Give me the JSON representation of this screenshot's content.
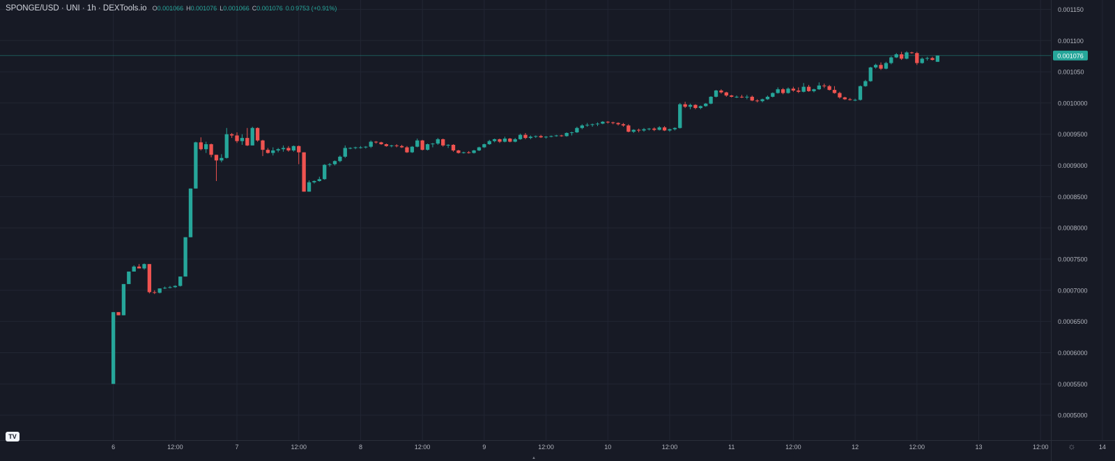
{
  "header": {
    "symbol": "SPONGE/USD · UNI · 1h · DEXTools.io",
    "ohlc": [
      {
        "key": "O",
        "value": "0.001066"
      },
      {
        "key": "H",
        "value": "0.001076"
      },
      {
        "key": "L",
        "value": "0.001066"
      },
      {
        "key": "C",
        "value": "0.001076"
      }
    ],
    "change": "0.0 9753 (+0.91%)"
  },
  "branding": {
    "tv_logo": "TV"
  },
  "colors": {
    "background": "#171a25",
    "grid": "#222633",
    "up": "#26a69a",
    "down": "#ef5350",
    "text": "#b2b5be",
    "price_label_bg": "#26a69a"
  },
  "chart_data": {
    "type": "candlestick",
    "title": "SPONGE/USD · UNI · 1h · DEXTools.io",
    "x_ticks": [
      "6",
      "12:00",
      "7",
      "12:00",
      "8",
      "12:00",
      "9",
      "12:00",
      "10",
      "12:00",
      "11",
      "12:00",
      "12",
      "12:00",
      "13",
      "12:00",
      "14",
      "12:00"
    ],
    "y_ticks": [
      "0.001150",
      "0.001100",
      "0.001050",
      "0.0010000",
      "0.0009500",
      "0.0009000",
      "0.0008500",
      "0.0008000",
      "0.0007500",
      "0.0007000",
      "0.0006500",
      "0.0006000",
      "0.0005500",
      "0.0005000"
    ],
    "y_tick_values": [
      0.00115,
      0.0011,
      0.00105,
      0.001,
      0.00095,
      0.0009,
      0.00085,
      0.0008,
      0.00075,
      0.0007,
      0.00065,
      0.0006,
      0.00055,
      0.0005
    ],
    "ylim": [
      0.00046,
      0.001165
    ],
    "x_range_hours": [
      -22,
      182
    ],
    "last_price": 0.001076,
    "last_price_label": "0.001076",
    "grid": true,
    "candles_start_hour": 0,
    "candles": [
      [
        0.00055,
        0.000665,
        0.00055,
        0.000665
      ],
      [
        0.000665,
        0.000665,
        0.00066,
        0.00066
      ],
      [
        0.00066,
        0.00071,
        0.00066,
        0.00071
      ],
      [
        0.00071,
        0.00073,
        0.00071,
        0.00073
      ],
      [
        0.00073,
        0.00074,
        0.00073,
        0.000738
      ],
      [
        0.000738,
        0.000742,
        0.000735,
        0.000735
      ],
      [
        0.000735,
        0.000743,
        0.000733,
        0.000742
      ],
      [
        0.000742,
        0.000742,
        0.000695,
        0.000697
      ],
      [
        0.000697,
        0.0007,
        0.000694,
        0.000696
      ],
      [
        0.000696,
        0.000703,
        0.000695,
        0.000703
      ],
      [
        0.000703,
        0.000706,
        0.000702,
        0.000704
      ],
      [
        0.000704,
        0.000707,
        0.000703,
        0.000705
      ],
      [
        0.000705,
        0.000708,
        0.000704,
        0.000707
      ],
      [
        0.000707,
        0.000722,
        0.000706,
        0.000722
      ],
      [
        0.000722,
        0.000785,
        0.000722,
        0.000785
      ],
      [
        0.000785,
        0.000863,
        0.000785,
        0.000863
      ],
      [
        0.000863,
        0.000938,
        0.000863,
        0.000937
      ],
      [
        0.000937,
        0.000945,
        0.000924,
        0.000926
      ],
      [
        0.000926,
        0.000938,
        0.00092,
        0.000934
      ],
      [
        0.000934,
        0.000935,
        0.000913,
        0.000917
      ],
      [
        0.000917,
        0.000917,
        0.000875,
        0.000908
      ],
      [
        0.000908,
        0.000918,
        0.000905,
        0.000912
      ],
      [
        0.000912,
        0.00096,
        0.000911,
        0.00095
      ],
      [
        0.00095,
        0.000952,
        0.000944,
        0.000948
      ],
      [
        0.000948,
        0.000953,
        0.000936,
        0.000939
      ],
      [
        0.000939,
        0.00095,
        0.000933,
        0.000944
      ],
      [
        0.000944,
        0.00096,
        0.000931,
        0.000932
      ],
      [
        0.000932,
        0.000962,
        0.000932,
        0.00096
      ],
      [
        0.00096,
        0.000961,
        0.000938,
        0.00094
      ],
      [
        0.00094,
        0.000941,
        0.000915,
        0.000925
      ],
      [
        0.000925,
        0.000928,
        0.000919,
        0.00092
      ],
      [
        0.00092,
        0.000929,
        0.000916,
        0.000924
      ],
      [
        0.000924,
        0.000928,
        0.000921,
        0.000926
      ],
      [
        0.000926,
        0.000932,
        0.000922,
        0.000928
      ],
      [
        0.000928,
        0.000931,
        0.000922,
        0.000924
      ],
      [
        0.000924,
        0.000932,
        0.000922,
        0.000931
      ],
      [
        0.000931,
        0.000932,
        0.000902,
        0.000921
      ],
      [
        0.000921,
        0.000921,
        0.000858,
        0.000858
      ],
      [
        0.000858,
        0.000876,
        0.000858,
        0.000873
      ],
      [
        0.000873,
        0.000876,
        0.000871,
        0.000875
      ],
      [
        0.000875,
        0.000882,
        0.000874,
        0.000878
      ],
      [
        0.000878,
        0.000902,
        0.000877,
        0.000901
      ],
      [
        0.000901,
        0.000904,
        0.000898,
        0.000902
      ],
      [
        0.000902,
        0.000908,
        0.0009,
        0.000907
      ],
      [
        0.000907,
        0.000916,
        0.000905,
        0.000914
      ],
      [
        0.000914,
        0.000932,
        0.000912,
        0.000928
      ],
      [
        0.000928,
        0.000929,
        0.000926,
        0.000928
      ],
      [
        0.000928,
        0.00093,
        0.000926,
        0.000929
      ],
      [
        0.000929,
        0.000931,
        0.000927,
        0.000929
      ],
      [
        0.000929,
        0.000931,
        0.000927,
        0.00093
      ],
      [
        0.00093,
        0.00094,
        0.000928,
        0.000938
      ],
      [
        0.000938,
        0.000939,
        0.000935,
        0.000937
      ],
      [
        0.000937,
        0.000938,
        0.000933,
        0.000934
      ],
      [
        0.000934,
        0.000935,
        0.00093,
        0.000931
      ],
      [
        0.000931,
        0.000933,
        0.000929,
        0.000932
      ],
      [
        0.000932,
        0.000934,
        0.000929,
        0.000931
      ],
      [
        0.000931,
        0.000933,
        0.000928,
        0.000929
      ],
      [
        0.000929,
        0.000931,
        0.00092,
        0.000921
      ],
      [
        0.000921,
        0.000931,
        0.00092,
        0.00093
      ],
      [
        0.00093,
        0.000943,
        0.000929,
        0.00094
      ],
      [
        0.00094,
        0.000941,
        0.000924,
        0.000925
      ],
      [
        0.000925,
        0.000935,
        0.000924,
        0.000934
      ],
      [
        0.000934,
        0.000936,
        0.000929,
        0.000935
      ],
      [
        0.000935,
        0.000944,
        0.000933,
        0.000942
      ],
      [
        0.000942,
        0.000943,
        0.00093,
        0.000932
      ],
      [
        0.000932,
        0.000934,
        0.000928,
        0.000933
      ],
      [
        0.000933,
        0.000934,
        0.000922,
        0.000924
      ],
      [
        0.000924,
        0.000925,
        0.000919,
        0.00092
      ],
      [
        0.00092,
        0.000922,
        0.000919,
        0.000921
      ],
      [
        0.000921,
        0.000923,
        0.000919,
        0.00092
      ],
      [
        0.00092,
        0.000925,
        0.000919,
        0.000924
      ],
      [
        0.000924,
        0.00093,
        0.000923,
        0.000929
      ],
      [
        0.000929,
        0.000935,
        0.000928,
        0.000934
      ],
      [
        0.000934,
        0.000941,
        0.000933,
        0.000939
      ],
      [
        0.000939,
        0.000943,
        0.000937,
        0.000942
      ],
      [
        0.000942,
        0.000943,
        0.000936,
        0.000938
      ],
      [
        0.000938,
        0.000946,
        0.000937,
        0.000943
      ],
      [
        0.000943,
        0.000944,
        0.000937,
        0.000938
      ],
      [
        0.000938,
        0.000944,
        0.000937,
        0.000942
      ],
      [
        0.000942,
        0.000951,
        0.000941,
        0.000949
      ],
      [
        0.000949,
        0.000952,
        0.000942,
        0.000944
      ],
      [
        0.000944,
        0.000948,
        0.000942,
        0.000946
      ],
      [
        0.000946,
        0.000948,
        0.000944,
        0.000947
      ],
      [
        0.000947,
        0.000949,
        0.000944,
        0.000945
      ],
      [
        0.000945,
        0.000947,
        0.000943,
        0.000946
      ],
      [
        0.000946,
        0.000948,
        0.000945,
        0.000947
      ],
      [
        0.000947,
        0.000949,
        0.000946,
        0.000948
      ],
      [
        0.000948,
        0.000949,
        0.000946,
        0.000947
      ],
      [
        0.000947,
        0.000953,
        0.000946,
        0.000952
      ],
      [
        0.000952,
        0.000954,
        0.000948,
        0.000953
      ],
      [
        0.000953,
        0.000962,
        0.000952,
        0.00096
      ],
      [
        0.00096,
        0.000966,
        0.000958,
        0.000964
      ],
      [
        0.000964,
        0.000968,
        0.000962,
        0.000965
      ],
      [
        0.000965,
        0.000967,
        0.000962,
        0.000966
      ],
      [
        0.000966,
        0.000969,
        0.000963,
        0.000967
      ],
      [
        0.000967,
        0.000971,
        0.000966,
        0.00097
      ],
      [
        0.00097,
        0.000971,
        0.000967,
        0.000969
      ],
      [
        0.000969,
        0.00097,
        0.000966,
        0.000968
      ],
      [
        0.000968,
        0.000969,
        0.000964,
        0.000966
      ],
      [
        0.000966,
        0.000968,
        0.000962,
        0.000964
      ],
      [
        0.000964,
        0.000966,
        0.000953,
        0.000954
      ],
      [
        0.000954,
        0.000958,
        0.000952,
        0.000957
      ],
      [
        0.000957,
        0.000959,
        0.000953,
        0.000956
      ],
      [
        0.000956,
        0.00096,
        0.000954,
        0.000958
      ],
      [
        0.000958,
        0.00096,
        0.000956,
        0.000959
      ],
      [
        0.000959,
        0.000961,
        0.000955,
        0.000957
      ],
      [
        0.000957,
        0.000963,
        0.000956,
        0.000961
      ],
      [
        0.000961,
        0.000963,
        0.000955,
        0.000956
      ],
      [
        0.000956,
        0.000959,
        0.000954,
        0.000958
      ],
      [
        0.000958,
        0.000961,
        0.000956,
        0.00096
      ],
      [
        0.00096,
        0.001,
        0.000959,
        0.000998
      ],
      [
        0.000998,
        0.001002,
        0.000992,
        0.000994
      ],
      [
        0.000994,
        0.000999,
        0.00099,
        0.000997
      ],
      [
        0.000997,
        0.000998,
        0.00099,
        0.000992
      ],
      [
        0.000992,
        0.000996,
        0.00099,
        0.000995
      ],
      [
        0.000995,
        0.001,
        0.000994,
        0.000999
      ],
      [
        0.000999,
        0.001011,
        0.000998,
        0.00101
      ],
      [
        0.00101,
        0.001021,
        0.001009,
        0.00102
      ],
      [
        0.00102,
        0.001022,
        0.001015,
        0.001017
      ],
      [
        0.001017,
        0.001018,
        0.00101,
        0.001012
      ],
      [
        0.001012,
        0.001013,
        0.001009,
        0.00101
      ],
      [
        0.00101,
        0.001012,
        0.001008,
        0.00101
      ],
      [
        0.00101,
        0.001013,
        0.001008,
        0.001009
      ],
      [
        0.001009,
        0.001013,
        0.001006,
        0.00101
      ],
      [
        0.00101,
        0.001012,
        0.001003,
        0.001004
      ],
      [
        0.001004,
        0.001006,
        0.001001,
        0.001003
      ],
      [
        0.001003,
        0.001007,
        0.001001,
        0.001006
      ],
      [
        0.001006,
        0.001012,
        0.001005,
        0.00101
      ],
      [
        0.00101,
        0.001017,
        0.001009,
        0.001016
      ],
      [
        0.001016,
        0.001025,
        0.001015,
        0.001022
      ],
      [
        0.001022,
        0.001024,
        0.001014,
        0.001016
      ],
      [
        0.001016,
        0.001025,
        0.001015,
        0.001023
      ],
      [
        0.001023,
        0.001026,
        0.001018,
        0.00102
      ],
      [
        0.00102,
        0.001025,
        0.001016,
        0.001018
      ],
      [
        0.001018,
        0.001032,
        0.001017,
        0.001026
      ],
      [
        0.001026,
        0.001029,
        0.001018,
        0.001019
      ],
      [
        0.001019,
        0.001023,
        0.001017,
        0.001022
      ],
      [
        0.001022,
        0.001033,
        0.001021,
        0.001028
      ],
      [
        0.001028,
        0.001031,
        0.001024,
        0.001027
      ],
      [
        0.001027,
        0.001029,
        0.00102,
        0.001021
      ],
      [
        0.001021,
        0.001027,
        0.001015,
        0.001016
      ],
      [
        0.001016,
        0.001018,
        0.001007,
        0.001009
      ],
      [
        0.001009,
        0.00101,
        0.001005,
        0.001006
      ],
      [
        0.001006,
        0.001008,
        0.001004,
        0.001005
      ],
      [
        0.001005,
        0.001007,
        0.001003,
        0.001005
      ],
      [
        0.001005,
        0.001028,
        0.001004,
        0.001027
      ],
      [
        0.001027,
        0.001037,
        0.001026,
        0.001035
      ],
      [
        0.001035,
        0.001058,
        0.001034,
        0.001057
      ],
      [
        0.001057,
        0.001063,
        0.001055,
        0.001061
      ],
      [
        0.001061,
        0.001065,
        0.001053,
        0.001055
      ],
      [
        0.001055,
        0.001066,
        0.001054,
        0.001064
      ],
      [
        0.001064,
        0.001075,
        0.001062,
        0.001073
      ],
      [
        0.001073,
        0.00108,
        0.001072,
        0.001078
      ],
      [
        0.001078,
        0.001082,
        0.001069,
        0.001071
      ],
      [
        0.001071,
        0.001083,
        0.00107,
        0.001081
      ],
      [
        0.001081,
        0.001082,
        0.001079,
        0.00108
      ],
      [
        0.00108,
        0.001082,
        0.001061,
        0.001064
      ],
      [
        0.001064,
        0.001073,
        0.001063,
        0.001071
      ],
      [
        0.001071,
        0.001074,
        0.001068,
        0.001072
      ],
      [
        0.001072,
        0.001074,
        0.001068,
        0.001069
      ],
      [
        0.001066,
        0.001076,
        0.001066,
        0.001076
      ]
    ]
  }
}
